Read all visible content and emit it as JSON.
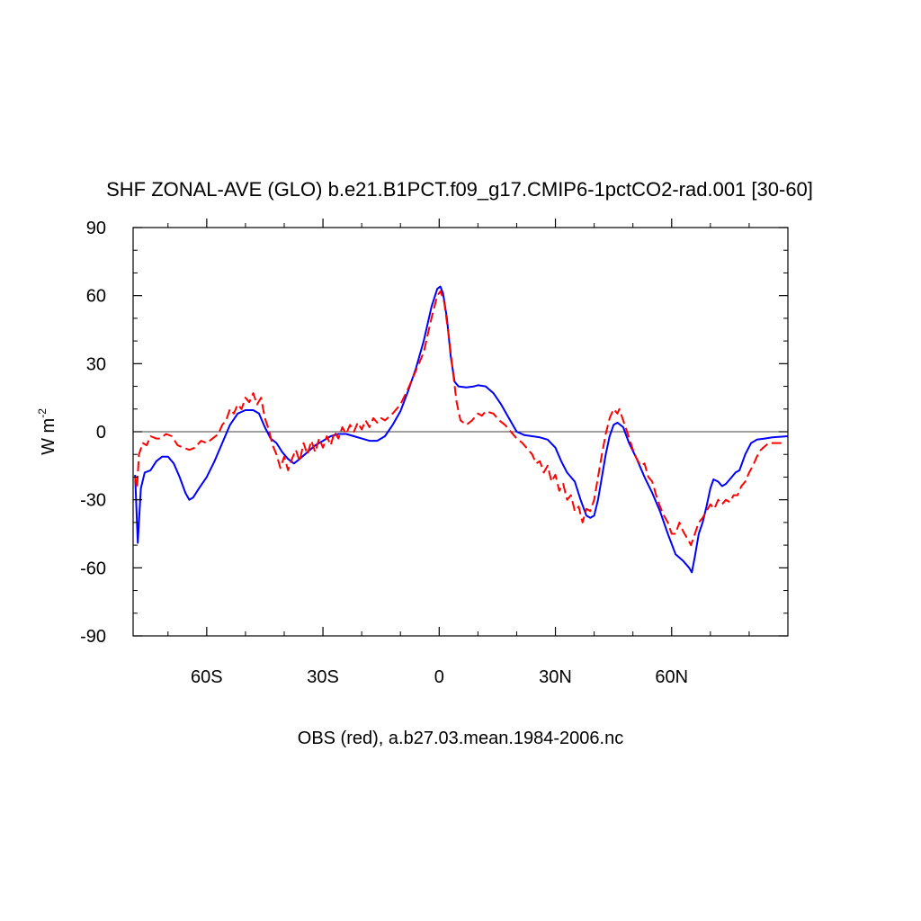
{
  "chart_data": {
    "type": "line",
    "title": "SHF ZONAL-AVE (GLO) b.e21.B1PCT.f09_g17.CMIP6-1pctCO2-rad.001 [30-60]",
    "xlabel": "OBS (red), a.b27.03.mean.1984-2006.nc",
    "ylabel": "W m",
    "ylabel_exponent": "-2",
    "xlim": [
      -79,
      90
    ],
    "ylim": [
      -90,
      90
    ],
    "grid": false,
    "zero_line": true,
    "x_ticks": [
      {
        "value": -60,
        "label": "60S"
      },
      {
        "value": -30,
        "label": "30S"
      },
      {
        "value": 0,
        "label": "0"
      },
      {
        "value": 30,
        "label": "30N"
      },
      {
        "value": 60,
        "label": "60N"
      }
    ],
    "y_ticks": [
      {
        "value": 90,
        "label": "90"
      },
      {
        "value": 60,
        "label": "60"
      },
      {
        "value": 30,
        "label": "30"
      },
      {
        "value": 0,
        "label": "0"
      },
      {
        "value": -30,
        "label": "-30"
      },
      {
        "value": -60,
        "label": "-60"
      },
      {
        "value": -90,
        "label": "-90"
      }
    ],
    "series": [
      {
        "color": "#0000ff",
        "style": "solid",
        "points": [
          [
            -78.5,
            -19
          ],
          [
            -77.8,
            -49
          ],
          [
            -77,
            -25
          ],
          [
            -76,
            -18
          ],
          [
            -74.5,
            -17
          ],
          [
            -73,
            -13
          ],
          [
            -71.5,
            -11
          ],
          [
            -70,
            -11
          ],
          [
            -68.5,
            -14
          ],
          [
            -67,
            -20
          ],
          [
            -65.5,
            -27
          ],
          [
            -64.5,
            -30
          ],
          [
            -63.5,
            -29
          ],
          [
            -62,
            -25
          ],
          [
            -60,
            -20
          ],
          [
            -58,
            -13
          ],
          [
            -56,
            -5
          ],
          [
            -54,
            3
          ],
          [
            -52,
            8
          ],
          [
            -50,
            9.5
          ],
          [
            -48,
            9.5
          ],
          [
            -46.5,
            8
          ],
          [
            -45,
            2
          ],
          [
            -43.5,
            -3
          ],
          [
            -42,
            -5
          ],
          [
            -40.5,
            -9
          ],
          [
            -39,
            -12
          ],
          [
            -37.5,
            -14
          ],
          [
            -36,
            -12
          ],
          [
            -34,
            -9
          ],
          [
            -32,
            -6
          ],
          [
            -30,
            -4
          ],
          [
            -28,
            -2
          ],
          [
            -26,
            -1
          ],
          [
            -24,
            -1
          ],
          [
            -22,
            -2
          ],
          [
            -20,
            -3
          ],
          [
            -18,
            -4
          ],
          [
            -16,
            -4
          ],
          [
            -14,
            -2
          ],
          [
            -12,
            3
          ],
          [
            -10,
            9
          ],
          [
            -8,
            18
          ],
          [
            -6,
            28
          ],
          [
            -4,
            40
          ],
          [
            -2,
            55
          ],
          [
            -0.5,
            63
          ],
          [
            0.3,
            64
          ],
          [
            1,
            61
          ],
          [
            2,
            50
          ],
          [
            3,
            33
          ],
          [
            4,
            22
          ],
          [
            5,
            20
          ],
          [
            7,
            19.5
          ],
          [
            9,
            20
          ],
          [
            10,
            20.5
          ],
          [
            12,
            20
          ],
          [
            14,
            17
          ],
          [
            16,
            12
          ],
          [
            18,
            6
          ],
          [
            20,
            0
          ],
          [
            22,
            -1.5
          ],
          [
            24,
            -2
          ],
          [
            26,
            -2.5
          ],
          [
            28,
            -3.5
          ],
          [
            30,
            -7
          ],
          [
            31.5,
            -13
          ],
          [
            33,
            -18
          ],
          [
            35,
            -22
          ],
          [
            36.5,
            -30
          ],
          [
            38,
            -37
          ],
          [
            39,
            -38
          ],
          [
            40,
            -37
          ],
          [
            41,
            -30
          ],
          [
            42,
            -20
          ],
          [
            43,
            -10
          ],
          [
            44,
            -2
          ],
          [
            45,
            3
          ],
          [
            46,
            4
          ],
          [
            47.5,
            2
          ],
          [
            49,
            -5
          ],
          [
            51,
            -12
          ],
          [
            53,
            -20
          ],
          [
            55,
            -27
          ],
          [
            57,
            -35
          ],
          [
            59,
            -45
          ],
          [
            61,
            -54
          ],
          [
            63,
            -57
          ],
          [
            64.5,
            -60
          ],
          [
            65.2,
            -62
          ],
          [
            66,
            -55
          ],
          [
            67,
            -45
          ],
          [
            68,
            -40
          ],
          [
            69,
            -33
          ],
          [
            70,
            -25
          ],
          [
            70.8,
            -21
          ],
          [
            72,
            -22
          ],
          [
            73,
            -24
          ],
          [
            74,
            -23
          ],
          [
            75,
            -21
          ],
          [
            76.5,
            -18
          ],
          [
            77.5,
            -17
          ],
          [
            79,
            -10
          ],
          [
            80.5,
            -5
          ],
          [
            82,
            -3.5
          ],
          [
            84,
            -3
          ],
          [
            86,
            -2.5
          ],
          [
            90,
            -2
          ]
        ]
      },
      {
        "color": "#ff0000",
        "style": "dashed",
        "points": [
          [
            -78.5,
            -20
          ],
          [
            -78,
            -25
          ],
          [
            -77.5,
            -10
          ],
          [
            -76.5,
            -5
          ],
          [
            -75.5,
            -6
          ],
          [
            -74.5,
            -2
          ],
          [
            -73,
            -3
          ],
          [
            -72,
            -3
          ],
          [
            -70.5,
            -1
          ],
          [
            -69,
            -2
          ],
          [
            -67.5,
            -6
          ],
          [
            -66,
            -7
          ],
          [
            -64.5,
            -8
          ],
          [
            -63,
            -7
          ],
          [
            -61.5,
            -4
          ],
          [
            -60,
            -5
          ],
          [
            -58.5,
            -3
          ],
          [
            -57,
            -1
          ],
          [
            -56,
            3
          ],
          [
            -55,
            5
          ],
          [
            -54,
            10
          ],
          [
            -53,
            8
          ],
          [
            -52,
            12
          ],
          [
            -51,
            10
          ],
          [
            -50,
            15
          ],
          [
            -49,
            13
          ],
          [
            -48,
            17
          ],
          [
            -47,
            12
          ],
          [
            -46,
            15
          ],
          [
            -45,
            6
          ],
          [
            -44,
            1
          ],
          [
            -43,
            -6
          ],
          [
            -42,
            -10
          ],
          [
            -41,
            -16
          ],
          [
            -40,
            -11
          ],
          [
            -39,
            -17
          ],
          [
            -38,
            -12
          ],
          [
            -37,
            -8
          ],
          [
            -36,
            -13
          ],
          [
            -35,
            -5
          ],
          [
            -34,
            -10
          ],
          [
            -33,
            -4
          ],
          [
            -32,
            -9
          ],
          [
            -31,
            -3
          ],
          [
            -30,
            -7
          ],
          [
            -29,
            -2
          ],
          [
            -28,
            -6
          ],
          [
            -27,
            0
          ],
          [
            -26,
            -3
          ],
          [
            -25,
            2
          ],
          [
            -24,
            -1
          ],
          [
            -23,
            3
          ],
          [
            -22,
            0
          ],
          [
            -21,
            4
          ],
          [
            -20,
            1
          ],
          [
            -19,
            5
          ],
          [
            -18,
            2
          ],
          [
            -17,
            6
          ],
          [
            -16,
            4
          ],
          [
            -15,
            6
          ],
          [
            -14,
            5
          ],
          [
            -12,
            8
          ],
          [
            -10,
            12
          ],
          [
            -8,
            19
          ],
          [
            -6,
            27
          ],
          [
            -4,
            35
          ],
          [
            -2,
            50
          ],
          [
            -0.5,
            60
          ],
          [
            0.4,
            62
          ],
          [
            1.3,
            57
          ],
          [
            2.5,
            42
          ],
          [
            3.5,
            27
          ],
          [
            4.5,
            13
          ],
          [
            5.5,
            5
          ],
          [
            7,
            3
          ],
          [
            8.5,
            5
          ],
          [
            10,
            8
          ],
          [
            11,
            7
          ],
          [
            12,
            9
          ],
          [
            14,
            8
          ],
          [
            15.5,
            5
          ],
          [
            17,
            3
          ],
          [
            18.5,
            0
          ],
          [
            20,
            -3
          ],
          [
            21.5,
            -5
          ],
          [
            23,
            -8
          ],
          [
            24,
            -10
          ],
          [
            25,
            -14
          ],
          [
            26,
            -13
          ],
          [
            27,
            -18
          ],
          [
            28,
            -15
          ],
          [
            29,
            -22
          ],
          [
            30,
            -19
          ],
          [
            31,
            -26
          ],
          [
            32,
            -23
          ],
          [
            33,
            -30
          ],
          [
            34,
            -28
          ],
          [
            35,
            -35
          ],
          [
            36,
            -33
          ],
          [
            37,
            -40
          ],
          [
            38,
            -34
          ],
          [
            39,
            -35
          ],
          [
            40,
            -30
          ],
          [
            41,
            -20
          ],
          [
            42,
            -10
          ],
          [
            43,
            -1
          ],
          [
            44,
            6
          ],
          [
            45,
            10
          ],
          [
            46,
            8
          ],
          [
            46.5,
            10
          ],
          [
            47.5,
            5
          ],
          [
            48.5,
            0
          ],
          [
            50,
            -8
          ],
          [
            51,
            -12
          ],
          [
            52,
            -15
          ],
          [
            53,
            -14
          ],
          [
            54,
            -20
          ],
          [
            55,
            -22
          ],
          [
            56,
            -28
          ],
          [
            57,
            -33
          ],
          [
            58,
            -37
          ],
          [
            59,
            -40
          ],
          [
            60,
            -45
          ],
          [
            61,
            -45
          ],
          [
            62,
            -40
          ],
          [
            63,
            -44
          ],
          [
            64,
            -47
          ],
          [
            65,
            -50
          ],
          [
            66,
            -45
          ],
          [
            67,
            -40
          ],
          [
            68,
            -38
          ],
          [
            69,
            -35
          ],
          [
            70,
            -32
          ],
          [
            71,
            -34
          ],
          [
            72,
            -30
          ],
          [
            73,
            -32
          ],
          [
            74,
            -30
          ],
          [
            75,
            -31
          ],
          [
            76,
            -28
          ],
          [
            77,
            -28
          ],
          [
            78,
            -24
          ],
          [
            79,
            -22
          ],
          [
            80,
            -18
          ],
          [
            81,
            -15
          ],
          [
            82,
            -11
          ],
          [
            83,
            -8
          ],
          [
            85,
            -5
          ],
          [
            87,
            -5
          ],
          [
            89,
            -5
          ]
        ]
      }
    ]
  }
}
